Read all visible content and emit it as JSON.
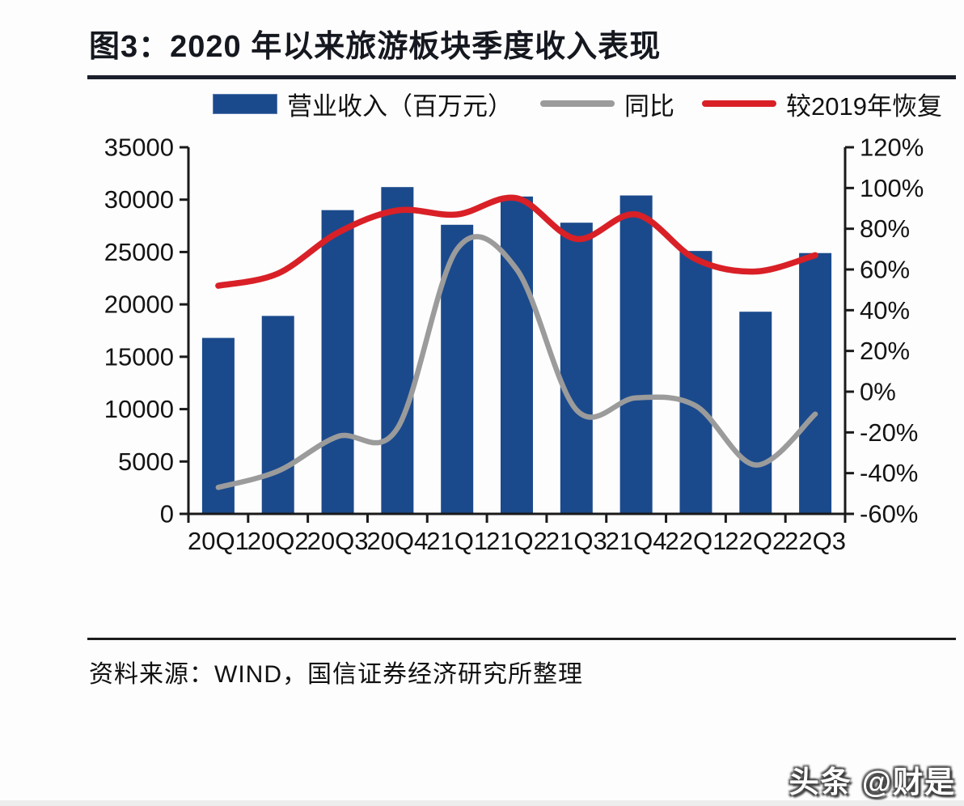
{
  "title": "图3：2020 年以来旅游板块季度收入表现",
  "legend": {
    "revenue": "营业收入（百万元）",
    "yoy": "同比",
    "recovery": "较2019年恢复"
  },
  "source": "资料来源：WIND，国信证券经济研究所整理",
  "watermark": "头条 @财是",
  "colors": {
    "bar": "#1b4a8c",
    "yoy_line": "#9b9b9b",
    "recovery_line": "#d92027",
    "axis": "#1a1a1a",
    "title_rule": "#1b1e2b"
  },
  "chart_data": {
    "type": "bar",
    "subtype": "bar-with-two-lines",
    "categories": [
      "20Q1",
      "20Q2",
      "20Q3",
      "20Q4",
      "21Q1",
      "21Q2",
      "21Q3",
      "21Q4",
      "22Q1",
      "22Q2",
      "22Q3"
    ],
    "series": [
      {
        "name": "营业收入（百万元）",
        "type": "bar",
        "axis": "left",
        "values": [
          16800,
          18900,
          29000,
          31200,
          27600,
          30300,
          27800,
          30400,
          25100,
          19300,
          24900
        ]
      },
      {
        "name": "同比",
        "type": "line",
        "axis": "right",
        "unit": "%",
        "values": [
          -47,
          -39,
          -22,
          -18,
          70,
          60,
          -9,
          -3,
          -7,
          -36,
          -11
        ]
      },
      {
        "name": "较2019年恢复",
        "type": "line",
        "axis": "right",
        "unit": "%",
        "values": [
          52,
          58,
          78,
          89,
          87,
          95,
          75,
          87,
          65,
          59,
          67
        ]
      }
    ],
    "left_axis": {
      "min": 0,
      "max": 35000,
      "step": 5000,
      "ticks": [
        "35000",
        "30000",
        "25000",
        "20000",
        "15000",
        "10000",
        "5000",
        "0"
      ]
    },
    "right_axis": {
      "min": -60,
      "max": 120,
      "step": 20,
      "ticks": [
        "120%",
        "100%",
        "80%",
        "60%",
        "40%",
        "20%",
        "0%",
        "-20%",
        "-40%",
        "-60%"
      ]
    },
    "grid": false,
    "legend_position": "top",
    "title": "图3：2020 年以来旅游板块季度收入表现"
  }
}
